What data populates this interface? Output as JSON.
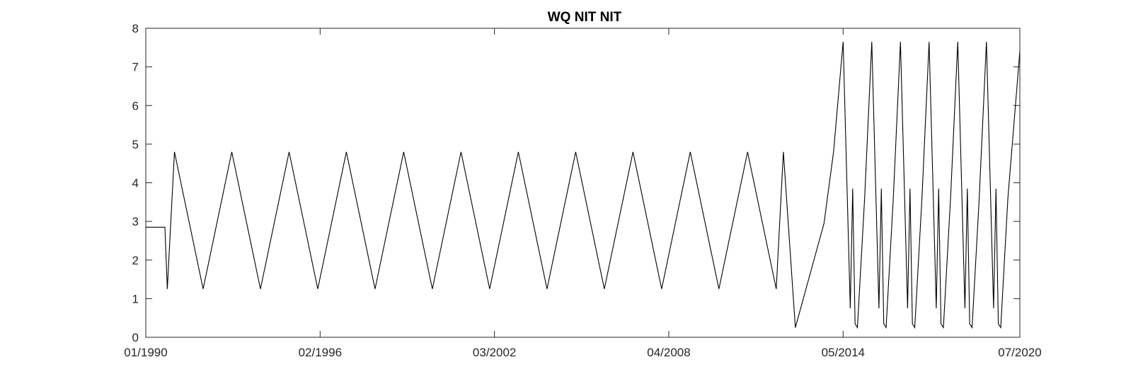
{
  "chart_data": {
    "type": "line",
    "title": "WQ NIT NIT",
    "xlabel": "",
    "ylabel": "",
    "x_ticks": [
      "01/1990",
      "02/1996",
      "03/2002",
      "04/2008",
      "05/2014",
      "07/2020"
    ],
    "x_tick_dates": [
      "1990-01",
      "1996-02",
      "2002-03",
      "2008-04",
      "2014-05",
      "2020-07"
    ],
    "xlim": [
      "1990-01",
      "2020-07"
    ],
    "ylim": [
      0,
      8
    ],
    "y_ticks": [
      0,
      1,
      2,
      3,
      4,
      5,
      6,
      7,
      8
    ],
    "grid": false,
    "line_color": "#000000",
    "series": [
      {
        "points": [
          [
            "1990-01",
            2.85
          ],
          [
            "1990-09",
            2.85
          ],
          [
            "1990-10",
            1.25
          ],
          [
            "1991-01",
            4.8
          ],
          [
            "1992-01",
            1.25
          ],
          [
            "1992-01",
            1.25
          ],
          [
            "1993-01",
            4.8
          ],
          [
            "1994-01",
            1.25
          ],
          [
            "1994-01",
            1.25
          ],
          [
            "1995-01",
            4.8
          ],
          [
            "1996-01",
            1.25
          ],
          [
            "1996-01",
            1.25
          ],
          [
            "1997-01",
            4.8
          ],
          [
            "1998-01",
            1.25
          ],
          [
            "1998-01",
            1.25
          ],
          [
            "1999-01",
            4.8
          ],
          [
            "2000-01",
            1.25
          ],
          [
            "2000-01",
            1.25
          ],
          [
            "2001-01",
            4.8
          ],
          [
            "2002-01",
            1.25
          ],
          [
            "2002-01",
            1.25
          ],
          [
            "2003-01",
            4.8
          ],
          [
            "2004-01",
            1.25
          ],
          [
            "2004-01",
            1.25
          ],
          [
            "2005-01",
            4.8
          ],
          [
            "2006-01",
            1.25
          ],
          [
            "2006-01",
            1.25
          ],
          [
            "2007-01",
            4.8
          ],
          [
            "2008-01",
            1.25
          ],
          [
            "2008-01",
            1.25
          ],
          [
            "2009-01",
            4.8
          ],
          [
            "2010-01",
            1.25
          ],
          [
            "2010-01",
            1.25
          ],
          [
            "2011-01",
            4.8
          ],
          [
            "2012-01",
            1.25
          ],
          [
            "2012-01",
            1.25
          ],
          [
            "2012-04",
            4.8
          ],
          [
            "2012-09",
            0.25
          ],
          [
            "2013-09",
            2.95
          ],
          [
            "2014-01",
            4.8
          ],
          [
            "2014-05",
            7.65
          ],
          [
            "2014-08",
            0.75
          ],
          [
            "2014-09",
            3.85
          ],
          [
            "2014-10",
            0.35
          ],
          [
            "2014-11",
            0.25
          ],
          [
            "2015-02",
            3.6
          ],
          [
            "2015-05",
            7.65
          ],
          [
            "2015-08",
            0.75
          ],
          [
            "2015-09",
            3.85
          ],
          [
            "2015-10",
            0.35
          ],
          [
            "2015-11",
            0.25
          ],
          [
            "2016-02",
            3.6
          ],
          [
            "2016-05",
            7.65
          ],
          [
            "2016-08",
            0.75
          ],
          [
            "2016-09",
            3.85
          ],
          [
            "2016-10",
            0.35
          ],
          [
            "2016-11",
            0.25
          ],
          [
            "2017-02",
            3.6
          ],
          [
            "2017-05",
            7.65
          ],
          [
            "2017-08",
            0.75
          ],
          [
            "2017-09",
            3.85
          ],
          [
            "2017-10",
            0.35
          ],
          [
            "2017-11",
            0.25
          ],
          [
            "2018-02",
            3.6
          ],
          [
            "2018-05",
            7.65
          ],
          [
            "2018-08",
            0.75
          ],
          [
            "2018-09",
            3.85
          ],
          [
            "2018-10",
            0.35
          ],
          [
            "2018-11",
            0.25
          ],
          [
            "2019-02",
            3.6
          ],
          [
            "2019-05",
            7.65
          ],
          [
            "2019-08",
            0.75
          ],
          [
            "2019-09",
            3.85
          ],
          [
            "2019-10",
            0.35
          ],
          [
            "2019-11",
            0.25
          ],
          [
            "2020-02",
            3.6
          ],
          [
            "2020-07",
            7.4
          ]
        ]
      }
    ]
  }
}
